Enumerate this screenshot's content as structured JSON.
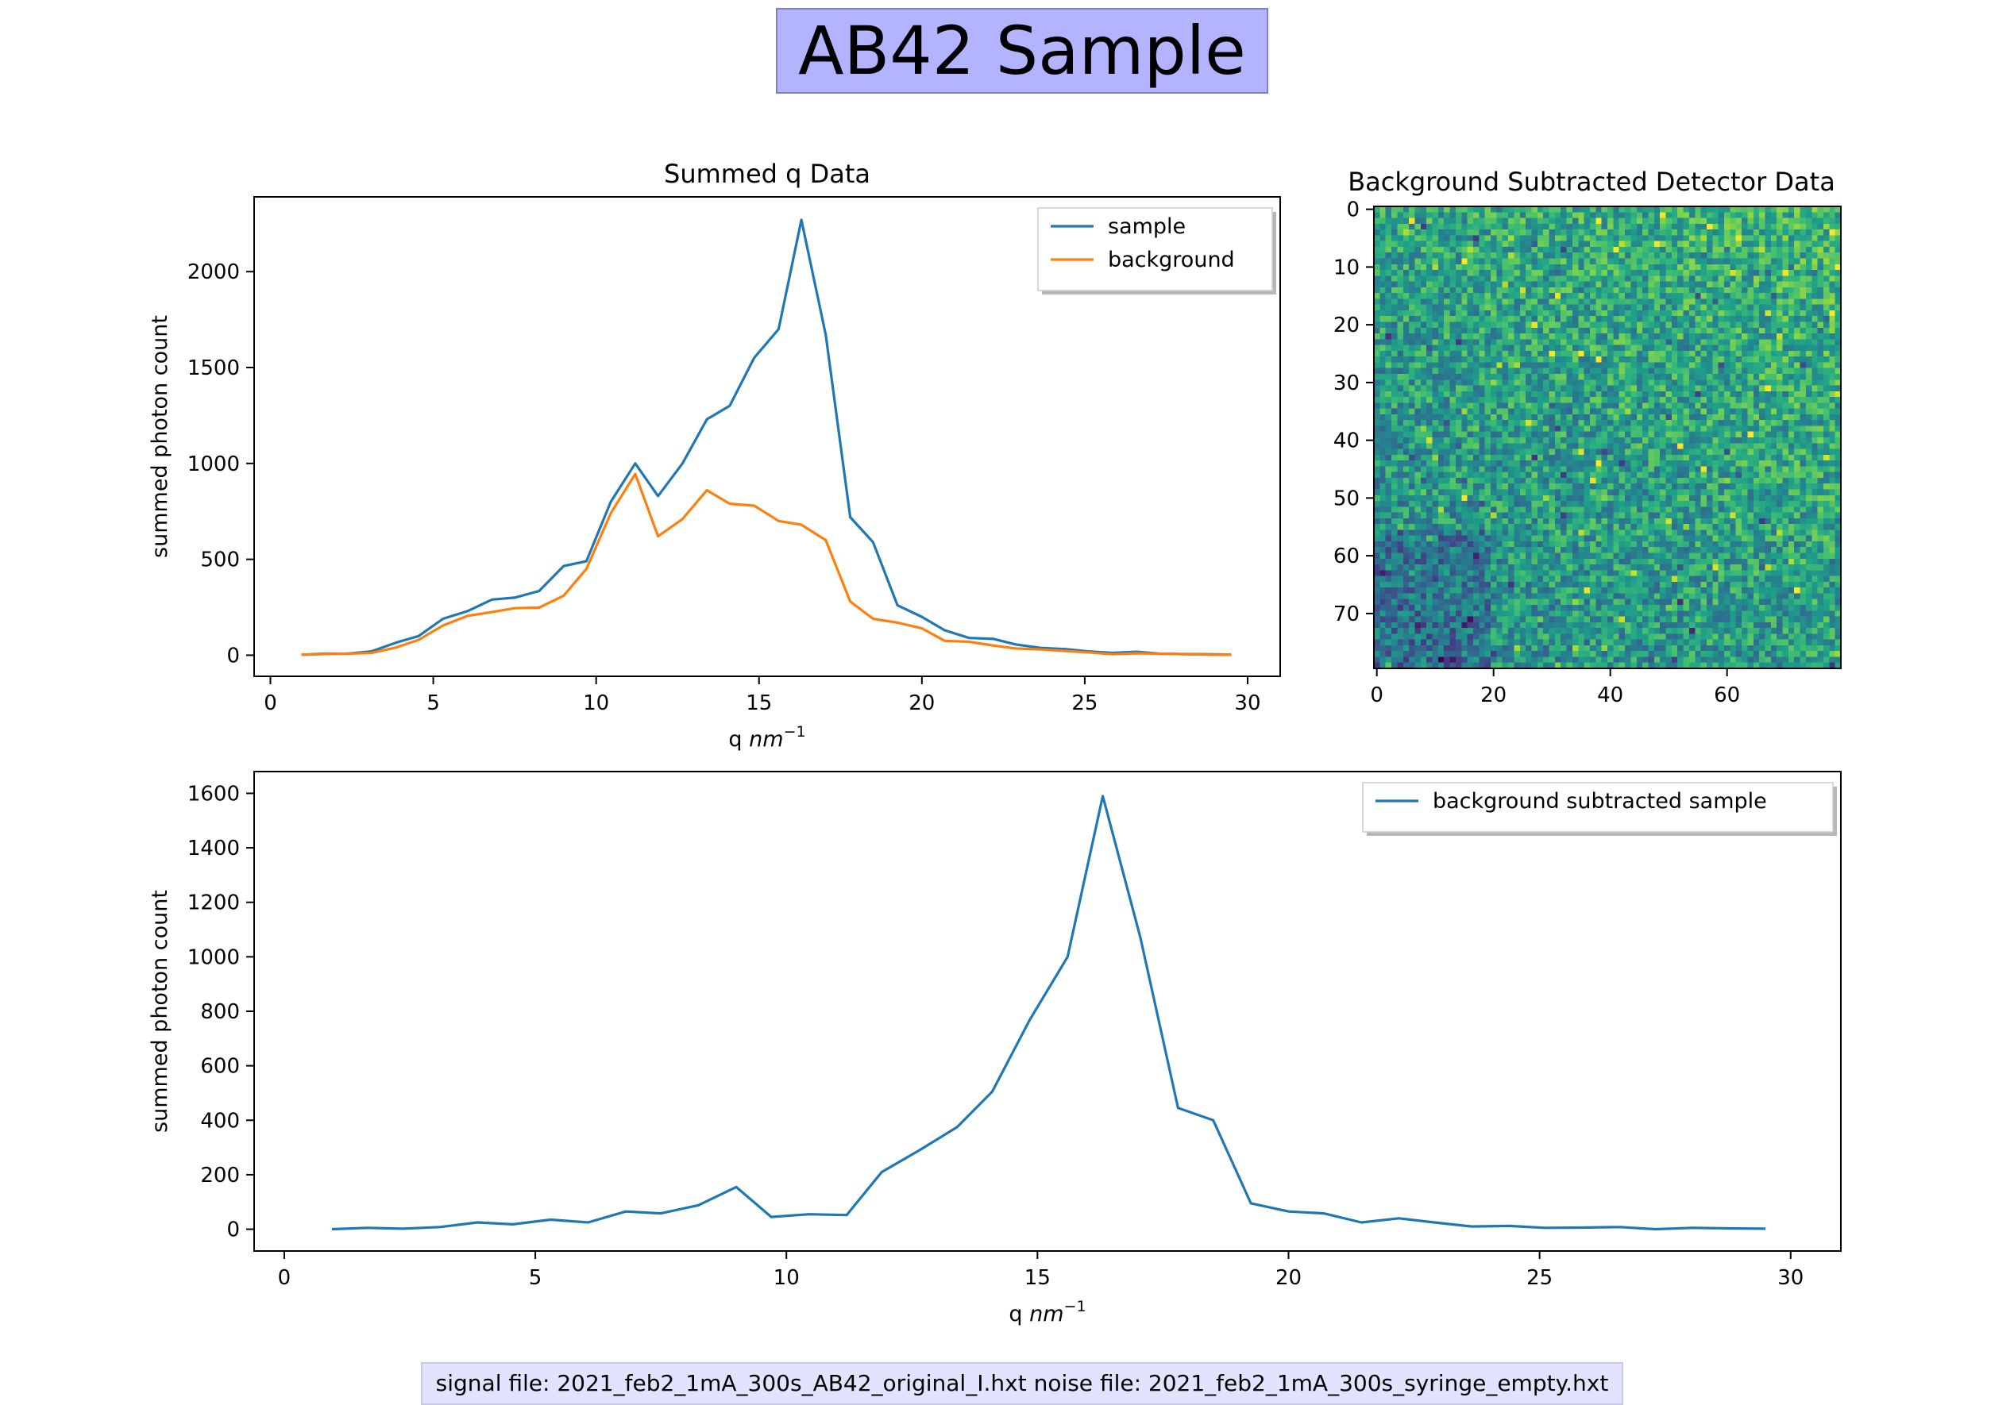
{
  "figure": {
    "title": "AB42 Sample",
    "footer": "signal file: 2021_feb2_1mA_300s_AB42_original_I.hxt noise file: 2021_feb2_1mA_300s_syringe_empty.hxt"
  },
  "colors": {
    "sample": "#1f77b4",
    "background": "#ff7f0e",
    "title_box": "#b3b3ff",
    "footer_box": "#e3e3ff"
  },
  "chart_data": [
    {
      "type": "line",
      "title": "Summed q Data",
      "xlabel": "q",
      "xlabel_unit": "nm",
      "xlabel_exp": "−1",
      "ylabel": "summed photon count",
      "xlim": [
        -0.5,
        31
      ],
      "ylim": [
        -110,
        2390
      ],
      "xticks": [
        0,
        5,
        10,
        15,
        20,
        25,
        30
      ],
      "yticks": [
        0,
        500,
        1000,
        1500,
        2000
      ],
      "legend_position": "upper-right",
      "x": [
        0.95,
        1.65,
        2.35,
        3.1,
        3.85,
        4.55,
        5.3,
        6.05,
        6.8,
        7.5,
        8.25,
        9.0,
        9.7,
        10.45,
        11.2,
        11.9,
        12.65,
        13.4,
        14.1,
        14.85,
        15.6,
        16.3,
        17.05,
        17.8,
        18.5,
        19.25,
        20.0,
        20.7,
        21.45,
        22.2,
        22.9,
        23.65,
        24.4,
        25.1,
        25.85,
        26.6,
        27.3,
        28.05,
        28.8,
        29.5
      ],
      "series": [
        {
          "name": "sample",
          "color": "#1f77b4",
          "values": [
            2,
            8,
            8,
            20,
            65,
            100,
            190,
            230,
            290,
            300,
            335,
            465,
            490,
            800,
            1000,
            830,
            1000,
            1230,
            1300,
            1550,
            1700,
            2270,
            1670,
            720,
            590,
            260,
            200,
            130,
            90,
            85,
            55,
            38,
            32,
            20,
            12,
            18,
            8,
            6,
            5,
            3
          ]
        },
        {
          "name": "background",
          "color": "#ff7f0e",
          "values": [
            2,
            6,
            8,
            12,
            40,
            80,
            155,
            205,
            225,
            245,
            248,
            310,
            450,
            740,
            945,
            620,
            710,
            860,
            790,
            780,
            700,
            680,
            600,
            280,
            190,
            170,
            140,
            75,
            70,
            50,
            35,
            30,
            22,
            15,
            5,
            10,
            8,
            5,
            3,
            2
          ]
        }
      ]
    },
    {
      "type": "heatmap",
      "title": "Background Subtracted Detector Data",
      "rows": 80,
      "cols": 80,
      "xlim": [
        -0.5,
        79.5
      ],
      "ylim": [
        79.5,
        -0.5
      ],
      "xticks": [
        0,
        20,
        40,
        60
      ],
      "yticks": [
        0,
        10,
        20,
        30,
        40,
        50,
        60,
        70
      ],
      "colormap": "viridis",
      "description_pattern": "noisy field, brighter toward top and right, darker in lower-left"
    },
    {
      "type": "line",
      "xlabel": "q",
      "xlabel_unit": "nm",
      "xlabel_exp": "−1",
      "ylabel": "summed photon count",
      "xlim": [
        -0.6,
        31
      ],
      "ylim": [
        -80,
        1680
      ],
      "xticks": [
        0,
        5,
        10,
        15,
        20,
        25,
        30
      ],
      "yticks": [
        0,
        200,
        400,
        600,
        800,
        1000,
        1200,
        1400,
        1600
      ],
      "legend_position": "upper-right",
      "x": [
        0.95,
        1.65,
        2.35,
        3.1,
        3.85,
        4.55,
        5.3,
        6.05,
        6.8,
        7.5,
        8.25,
        9.0,
        9.7,
        10.45,
        11.2,
        11.9,
        12.65,
        13.4,
        14.1,
        14.85,
        15.6,
        16.3,
        17.05,
        17.8,
        18.5,
        19.25,
        20.0,
        20.7,
        21.45,
        22.2,
        22.9,
        23.65,
        24.4,
        25.1,
        25.85,
        26.6,
        27.3,
        28.05,
        28.8,
        29.5
      ],
      "series": [
        {
          "name": "background subtracted sample",
          "color": "#1f77b4",
          "values": [
            0,
            5,
            2,
            8,
            25,
            18,
            35,
            25,
            65,
            58,
            88,
            155,
            45,
            55,
            52,
            210,
            290,
            375,
            505,
            770,
            1000,
            1590,
            1070,
            445,
            400,
            95,
            65,
            58,
            25,
            40,
            25,
            10,
            12,
            5,
            6,
            8,
            0,
            5,
            3,
            2
          ]
        }
      ]
    }
  ]
}
